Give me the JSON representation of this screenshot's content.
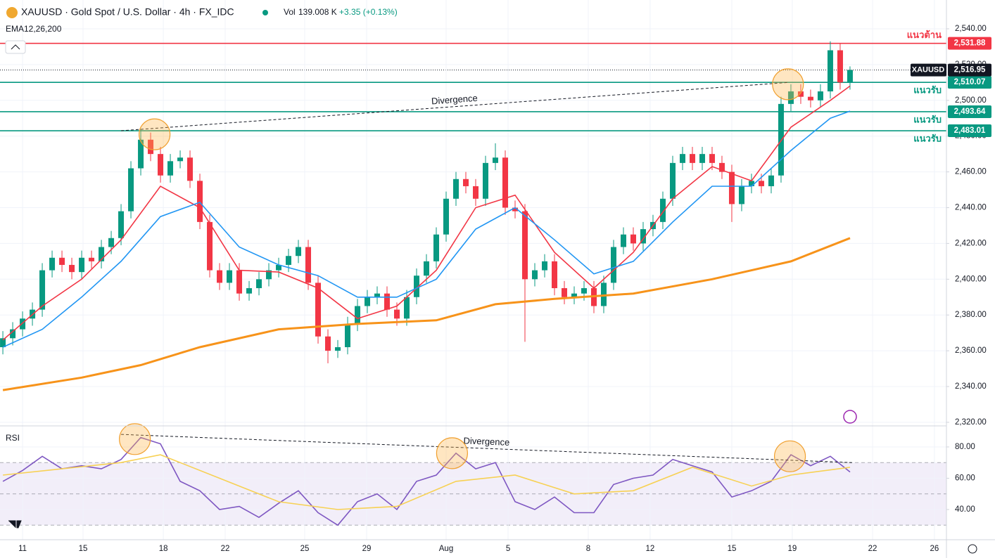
{
  "header": {
    "symbol": "XAUUSD · Gold Spot / U.S. Dollar · 4h · FX_IDC",
    "vol_label": "Vol",
    "volume": "139.008 K",
    "change": "+3.35 (+0.13%)",
    "indicator": "EMA12,26,200"
  },
  "chart_data": [
    {
      "type": "candlestick",
      "name": "XAUUSD",
      "up_color": "#089981",
      "down_color": "#f23645",
      "last": {
        "value": 2516.95,
        "label": "2,516.95"
      },
      "open": [
        2362,
        2367,
        2372,
        2378,
        2383,
        2405,
        2412,
        2408,
        2404,
        2412,
        2410,
        2418,
        2423,
        2438,
        2462,
        2478,
        2470,
        2458,
        2466,
        2468,
        2455,
        2432,
        2405,
        2398,
        2405,
        2392,
        2395,
        2400,
        2405,
        2408,
        2413,
        2418,
        2398,
        2368,
        2360,
        2362,
        2375,
        2385,
        2390,
        2392,
        2383,
        2378,
        2390,
        2402,
        2410,
        2425,
        2445,
        2456,
        2452,
        2445,
        2465,
        2468,
        2440,
        2438,
        2400,
        2405,
        2410,
        2395,
        2390,
        2392,
        2395,
        2385,
        2398,
        2418,
        2425,
        2420,
        2428,
        2432,
        2445,
        2465,
        2470,
        2465,
        2470,
        2465,
        2460,
        2442,
        2452,
        2455,
        2452,
        2458,
        2498,
        2505,
        2502,
        2500,
        2505,
        2528,
        2510
      ],
      "high": [
        2371,
        2376,
        2382,
        2387,
        2409,
        2416,
        2416,
        2412,
        2416,
        2416,
        2422,
        2427,
        2442,
        2466,
        2484,
        2482,
        2474,
        2470,
        2472,
        2472,
        2459,
        2436,
        2409,
        2409,
        2409,
        2399,
        2404,
        2409,
        2412,
        2417,
        2422,
        2422,
        2402,
        2372,
        2366,
        2379,
        2389,
        2394,
        2396,
        2396,
        2387,
        2394,
        2406,
        2414,
        2429,
        2449,
        2460,
        2460,
        2456,
        2469,
        2476,
        2472,
        2444,
        2442,
        2409,
        2414,
        2414,
        2399,
        2396,
        2399,
        2399,
        2402,
        2422,
        2429,
        2429,
        2432,
        2436,
        2449,
        2469,
        2474,
        2474,
        2474,
        2474,
        2469,
        2464,
        2456,
        2459,
        2459,
        2462,
        2502,
        2509,
        2509,
        2506,
        2509,
        2533,
        2532,
        2519
      ],
      "low": [
        2358,
        2363,
        2368,
        2374,
        2379,
        2401,
        2404,
        2400,
        2400,
        2406,
        2406,
        2414,
        2419,
        2434,
        2458,
        2466,
        2454,
        2454,
        2462,
        2451,
        2428,
        2401,
        2394,
        2394,
        2388,
        2388,
        2391,
        2396,
        2401,
        2404,
        2409,
        2394,
        2364,
        2353,
        2356,
        2358,
        2371,
        2381,
        2386,
        2379,
        2374,
        2374,
        2386,
        2398,
        2406,
        2421,
        2441,
        2448,
        2441,
        2441,
        2461,
        2436,
        2434,
        2365,
        2396,
        2401,
        2391,
        2386,
        2386,
        2388,
        2381,
        2381,
        2394,
        2414,
        2416,
        2416,
        2424,
        2428,
        2441,
        2461,
        2461,
        2461,
        2461,
        2456,
        2432,
        2438,
        2448,
        2448,
        2448,
        2454,
        2494,
        2498,
        2496,
        2496,
        2501,
        2506,
        2506
      ],
      "close": [
        2367,
        2372,
        2378,
        2383,
        2405,
        2412,
        2408,
        2404,
        2412,
        2410,
        2418,
        2423,
        2438,
        2462,
        2478,
        2470,
        2458,
        2466,
        2468,
        2455,
        2432,
        2405,
        2398,
        2405,
        2392,
        2395,
        2400,
        2405,
        2408,
        2413,
        2418,
        2398,
        2368,
        2360,
        2362,
        2375,
        2385,
        2390,
        2392,
        2383,
        2378,
        2390,
        2402,
        2410,
        2425,
        2445,
        2456,
        2452,
        2445,
        2465,
        2468,
        2440,
        2438,
        2400,
        2405,
        2410,
        2395,
        2390,
        2392,
        2395,
        2385,
        2398,
        2418,
        2425,
        2420,
        2428,
        2432,
        2445,
        2465,
        2470,
        2465,
        2470,
        2465,
        2460,
        2442,
        2452,
        2455,
        2452,
        2458,
        2498,
        2505,
        2502,
        2500,
        2505,
        2528,
        2510,
        2516.95
      ],
      "series": [
        {
          "color": "#f23645",
          "x": [
            0,
            4,
            8,
            12,
            16,
            20,
            24,
            28,
            32,
            36,
            40,
            44,
            48,
            52,
            56,
            60,
            64,
            68,
            72,
            76,
            80,
            84,
            86
          ],
          "values": [
            2366,
            2385,
            2400,
            2422,
            2452,
            2440,
            2405,
            2404,
            2395,
            2378,
            2385,
            2405,
            2440,
            2447,
            2415,
            2395,
            2415,
            2445,
            2463,
            2455,
            2485,
            2500,
            2508
          ]
        },
        {
          "color": "#2196f3",
          "x": [
            0,
            4,
            8,
            12,
            16,
            20,
            24,
            28,
            32,
            36,
            40,
            44,
            48,
            52,
            56,
            60,
            64,
            68,
            72,
            76,
            80,
            84,
            86
          ],
          "values": [
            2362,
            2372,
            2390,
            2410,
            2435,
            2443,
            2418,
            2408,
            2402,
            2390,
            2390,
            2400,
            2428,
            2440,
            2422,
            2403,
            2410,
            2432,
            2452,
            2452,
            2472,
            2490,
            2494
          ]
        },
        {
          "color": "#f7931a",
          "x": [
            0,
            8,
            14,
            20,
            28,
            36,
            44,
            50,
            56,
            64,
            72,
            80,
            86
          ],
          "values": [
            2338,
            2345,
            2352,
            2362,
            2372,
            2375,
            2377,
            2386,
            2389,
            2392,
            2400,
            2410,
            2423
          ]
        }
      ],
      "levels": [
        {
          "value": 2531.88,
          "label": "2,531.88",
          "text": "แนวต้าน",
          "color": "#f23645"
        },
        {
          "value": 2510.07,
          "label": "2,510.07",
          "text": "แนวรับ",
          "color": "#089981"
        },
        {
          "value": 2493.64,
          "label": "2,493.64",
          "text": "แนวรับ",
          "color": "#089981"
        },
        {
          "value": 2483.01,
          "label": "2,483.01",
          "text": "แนวรับ",
          "color": "#089981"
        }
      ],
      "annotations": [
        {
          "text": "Divergence",
          "from": [
            12,
            2483
          ],
          "to": [
            79.7,
            2510
          ]
        }
      ],
      "highlights": [
        [
          15.4,
          2481
        ],
        [
          79.7,
          2509
        ]
      ],
      "xlim": [
        -0.29,
        95.79
      ],
      "ylim": [
        2318.4,
        2556.1
      ],
      "yticks": [
        {
          "value": 2320,
          "label": "2,320.00"
        },
        {
          "value": 2340,
          "label": "2,340.00"
        },
        {
          "value": 2360,
          "label": "2,360.00"
        },
        {
          "value": 2380,
          "label": "2,380.00"
        },
        {
          "value": 2400,
          "label": "2,400.00"
        },
        {
          "value": 2420,
          "label": "2,420.00"
        },
        {
          "value": 2440,
          "label": "2,440.00"
        },
        {
          "value": 2460,
          "label": "2,460.00"
        },
        {
          "value": 2480,
          "label": "2,480.00"
        },
        {
          "value": 2500,
          "label": "2,500.00"
        },
        {
          "value": 2520,
          "label": "2,520.00"
        },
        {
          "value": 2540,
          "label": "2,540.00"
        }
      ],
      "grid": true
    },
    {
      "type": "line",
      "title": "RSI",
      "series": [
        {
          "color": "#7e57c2",
          "x": [
            0,
            2,
            4,
            6,
            8,
            10,
            12,
            14,
            16,
            18,
            20,
            22,
            24,
            26,
            28,
            30,
            32,
            34,
            36,
            38,
            40,
            42,
            44,
            46,
            48,
            50,
            52,
            54,
            56,
            58,
            60,
            62,
            64,
            66,
            68,
            70,
            72,
            74,
            76,
            78,
            80,
            82,
            84,
            86
          ],
          "values": [
            58,
            65,
            74,
            66,
            68,
            66,
            72,
            86,
            82,
            58,
            52,
            40,
            42,
            35,
            44,
            52,
            38,
            30,
            45,
            50,
            40,
            58,
            62,
            76,
            66,
            70,
            45,
            40,
            48,
            38,
            38,
            56,
            60,
            62,
            72,
            68,
            64,
            48,
            52,
            58,
            75,
            68,
            74,
            64
          ]
        },
        {
          "color": "#f7d154",
          "x": [
            0,
            6,
            12,
            16,
            22,
            28,
            34,
            40,
            46,
            52,
            58,
            64,
            70,
            76,
            80,
            86
          ],
          "values": [
            62,
            66,
            70,
            75,
            60,
            45,
            40,
            42,
            58,
            62,
            50,
            52,
            67,
            55,
            62,
            67
          ]
        }
      ],
      "band": [
        30,
        70
      ],
      "midline": 50,
      "band_color": "#7e57c2",
      "annotations": [
        {
          "text": "Divergence",
          "from": [
            12,
            88
          ],
          "to": [
            86.2,
            70
          ]
        }
      ],
      "highlights": [
        [
          13.4,
          85
        ],
        [
          45.6,
          76
        ],
        [
          79.9,
          74
        ]
      ],
      "xlim": [
        -0.29,
        95.79
      ],
      "ylim": [
        20.7,
        93.0
      ],
      "yticks": [
        {
          "value": 40,
          "label": "40.00"
        },
        {
          "value": 60,
          "label": "60.00"
        },
        {
          "value": 80,
          "label": "80.00"
        }
      ],
      "xticks": [
        {
          "value": 2,
          "label": "11"
        },
        {
          "value": 8.14,
          "label": "15"
        },
        {
          "value": 16.29,
          "label": "18"
        },
        {
          "value": 22.57,
          "label": "22"
        },
        {
          "value": 30.64,
          "label": "25"
        },
        {
          "value": 36.93,
          "label": "29"
        },
        {
          "value": 45,
          "label": "Aug"
        },
        {
          "value": 51.29,
          "label": "5"
        },
        {
          "value": 59.43,
          "label": "8"
        },
        {
          "value": 65.71,
          "label": "12"
        },
        {
          "value": 74,
          "label": "15"
        },
        {
          "value": 80.14,
          "label": "19"
        },
        {
          "value": 88.29,
          "label": "22"
        },
        {
          "value": 94.57,
          "label": "26"
        }
      ],
      "grid": true
    }
  ]
}
